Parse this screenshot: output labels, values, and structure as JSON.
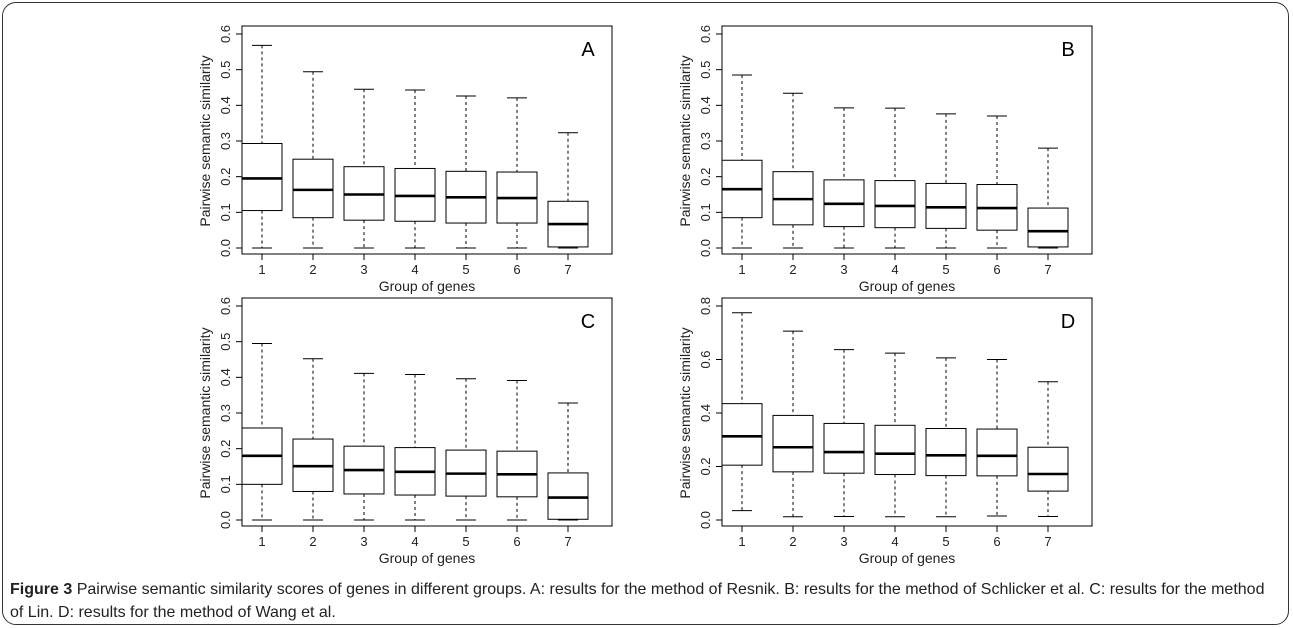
{
  "figure": {
    "label": "Figure 3",
    "caption": "Pairwise semantic similarity scores of genes in different groups. A: results for the method of Resnik. B: results for the method of Schlicker et al. C: results for the method of Lin. D: results for the method of Wang et al."
  },
  "chart_data": [
    {
      "type": "boxplot",
      "panel_label": "A",
      "xlabel": "Group of genes",
      "ylabel": "Pairwise semantic similarity",
      "categories": [
        "1",
        "2",
        "3",
        "4",
        "5",
        "6",
        "7"
      ],
      "ylim": [
        0,
        0.6
      ],
      "yticks": [
        0.0,
        0.1,
        0.2,
        0.3,
        0.4,
        0.5,
        0.6
      ],
      "ytick_labels": [
        "0.0",
        "0.1",
        "0.2",
        "0.3",
        "0.4",
        "0.5",
        "0.6"
      ],
      "boxes": [
        {
          "min": 0.0,
          "q1": 0.105,
          "median": 0.195,
          "q3": 0.293,
          "max": 0.568
        },
        {
          "min": 0.0,
          "q1": 0.085,
          "median": 0.163,
          "q3": 0.249,
          "max": 0.494
        },
        {
          "min": 0.0,
          "q1": 0.078,
          "median": 0.15,
          "q3": 0.228,
          "max": 0.445
        },
        {
          "min": 0.0,
          "q1": 0.075,
          "median": 0.146,
          "q3": 0.223,
          "max": 0.443
        },
        {
          "min": 0.0,
          "q1": 0.07,
          "median": 0.142,
          "q3": 0.215,
          "max": 0.426
        },
        {
          "min": 0.0,
          "q1": 0.07,
          "median": 0.14,
          "q3": 0.213,
          "max": 0.421
        },
        {
          "min": 0.0,
          "q1": 0.003,
          "median": 0.067,
          "q3": 0.131,
          "max": 0.323
        }
      ]
    },
    {
      "type": "boxplot",
      "panel_label": "B",
      "xlabel": "Group of genes",
      "ylabel": "Pairwise semantic similarity",
      "categories": [
        "1",
        "2",
        "3",
        "4",
        "5",
        "6",
        "7"
      ],
      "ylim": [
        0,
        0.6
      ],
      "yticks": [
        0.0,
        0.1,
        0.2,
        0.3,
        0.4,
        0.5,
        0.6
      ],
      "ytick_labels": [
        "0.0",
        "0.1",
        "0.2",
        "0.3",
        "0.4",
        "0.5",
        "0.6"
      ],
      "boxes": [
        {
          "min": 0.0,
          "q1": 0.085,
          "median": 0.165,
          "q3": 0.246,
          "max": 0.485
        },
        {
          "min": 0.0,
          "q1": 0.065,
          "median": 0.137,
          "q3": 0.214,
          "max": 0.434
        },
        {
          "min": 0.0,
          "q1": 0.06,
          "median": 0.124,
          "q3": 0.191,
          "max": 0.393
        },
        {
          "min": 0.0,
          "q1": 0.057,
          "median": 0.118,
          "q3": 0.189,
          "max": 0.392
        },
        {
          "min": 0.0,
          "q1": 0.055,
          "median": 0.114,
          "q3": 0.181,
          "max": 0.376
        },
        {
          "min": 0.0,
          "q1": 0.05,
          "median": 0.112,
          "q3": 0.178,
          "max": 0.37
        },
        {
          "min": 0.0,
          "q1": 0.003,
          "median": 0.047,
          "q3": 0.112,
          "max": 0.28
        }
      ]
    },
    {
      "type": "boxplot",
      "panel_label": "C",
      "xlabel": "Group of genes",
      "ylabel": "Pairwise semantic similarity",
      "categories": [
        "1",
        "2",
        "3",
        "4",
        "5",
        "6",
        "7"
      ],
      "ylim": [
        0,
        0.6
      ],
      "yticks": [
        0.0,
        0.1,
        0.2,
        0.3,
        0.4,
        0.5,
        0.6
      ],
      "ytick_labels": [
        "0.0",
        "0.1",
        "0.2",
        "0.3",
        "0.4",
        "0.5",
        "0.6"
      ],
      "boxes": [
        {
          "min": 0.0,
          "q1": 0.1,
          "median": 0.18,
          "q3": 0.258,
          "max": 0.495
        },
        {
          "min": 0.0,
          "q1": 0.08,
          "median": 0.151,
          "q3": 0.227,
          "max": 0.452
        },
        {
          "min": 0.0,
          "q1": 0.073,
          "median": 0.14,
          "q3": 0.207,
          "max": 0.411
        },
        {
          "min": 0.0,
          "q1": 0.07,
          "median": 0.135,
          "q3": 0.203,
          "max": 0.408
        },
        {
          "min": 0.0,
          "q1": 0.067,
          "median": 0.13,
          "q3": 0.196,
          "max": 0.396
        },
        {
          "min": 0.0,
          "q1": 0.065,
          "median": 0.128,
          "q3": 0.193,
          "max": 0.391
        },
        {
          "min": 0.0,
          "q1": 0.002,
          "median": 0.063,
          "q3": 0.132,
          "max": 0.328
        }
      ]
    },
    {
      "type": "boxplot",
      "panel_label": "D",
      "xlabel": "Group of genes",
      "ylabel": "Pairwise semantic similarity",
      "categories": [
        "1",
        "2",
        "3",
        "4",
        "5",
        "6",
        "7"
      ],
      "ylim": [
        0,
        0.8
      ],
      "yticks": [
        0.0,
        0.2,
        0.4,
        0.6,
        0.8
      ],
      "ytick_labels": [
        "0.0",
        "0.2",
        "0.4",
        "0.6",
        "0.8"
      ],
      "boxes": [
        {
          "min": 0.035,
          "q1": 0.205,
          "median": 0.313,
          "q3": 0.435,
          "max": 0.775
        },
        {
          "min": 0.012,
          "q1": 0.18,
          "median": 0.272,
          "q3": 0.391,
          "max": 0.706
        },
        {
          "min": 0.013,
          "q1": 0.175,
          "median": 0.254,
          "q3": 0.361,
          "max": 0.637
        },
        {
          "min": 0.012,
          "q1": 0.17,
          "median": 0.248,
          "q3": 0.354,
          "max": 0.624
        },
        {
          "min": 0.012,
          "q1": 0.166,
          "median": 0.242,
          "q3": 0.342,
          "max": 0.606
        },
        {
          "min": 0.015,
          "q1": 0.165,
          "median": 0.24,
          "q3": 0.34,
          "max": 0.6
        },
        {
          "min": 0.013,
          "q1": 0.108,
          "median": 0.172,
          "q3": 0.272,
          "max": 0.517
        }
      ]
    }
  ]
}
